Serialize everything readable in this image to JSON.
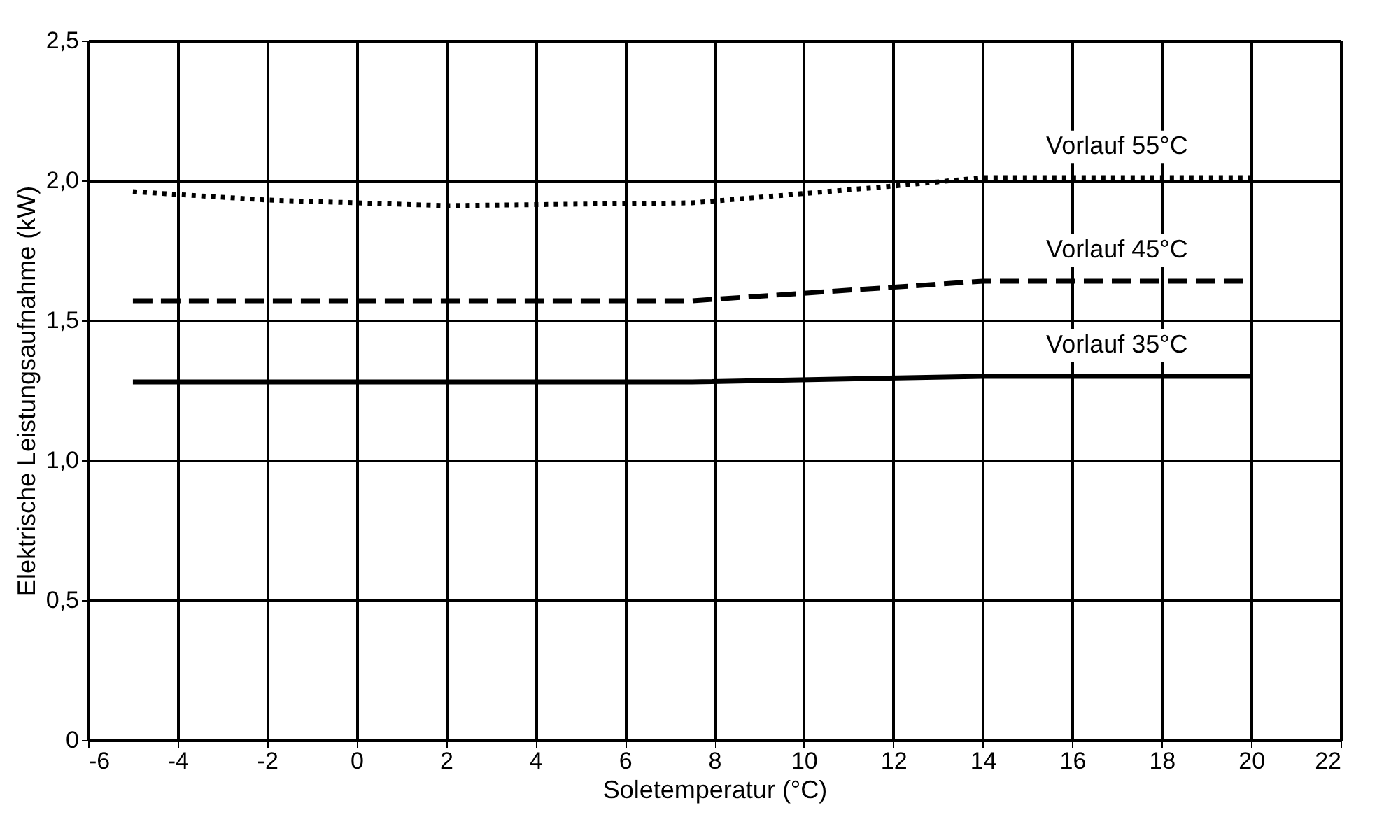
{
  "chart_data": {
    "type": "line",
    "xlabel": "Soletemperatur  (°C)",
    "ylabel": "Elektrische Leistungsaufnahme (kW)",
    "xlim": [
      -6,
      22
    ],
    "xticks": [
      -6,
      -4,
      -2,
      0,
      2,
      4,
      6,
      8,
      10,
      12,
      14,
      16,
      18,
      20,
      22
    ],
    "ylim": [
      0,
      2.5
    ],
    "yticks": [
      0,
      {
        "value": 0.5,
        "label": "0,5"
      },
      {
        "value": 1.0,
        "label": "1,0"
      },
      {
        "value": 1.5,
        "label": "1,5"
      },
      {
        "value": 2.0,
        "label": "2,0"
      },
      {
        "value": 2.5,
        "label": "2,5"
      }
    ],
    "grid": true,
    "marker": "none",
    "series": [
      {
        "name": "Vorlauf 55°C",
        "color": "#000000",
        "line_style": "dotted",
        "x": [
          -5,
          -2,
          2,
          7.5,
          12,
          14,
          20
        ],
        "values": [
          1.96,
          1.93,
          1.91,
          1.92,
          1.98,
          2.01,
          2.01
        ]
      },
      {
        "name": "Vorlauf 45°C",
        "color": "#000000",
        "line_style": "dashed",
        "x": [
          -5,
          7.5,
          14,
          20
        ],
        "values": [
          1.57,
          1.57,
          1.64,
          1.64
        ]
      },
      {
        "name": "Vorlauf 35°C",
        "color": "#000000",
        "line_style": "solid",
        "x": [
          -5,
          7.5,
          14,
          20
        ],
        "values": [
          1.28,
          1.28,
          1.3,
          1.3
        ]
      }
    ]
  }
}
